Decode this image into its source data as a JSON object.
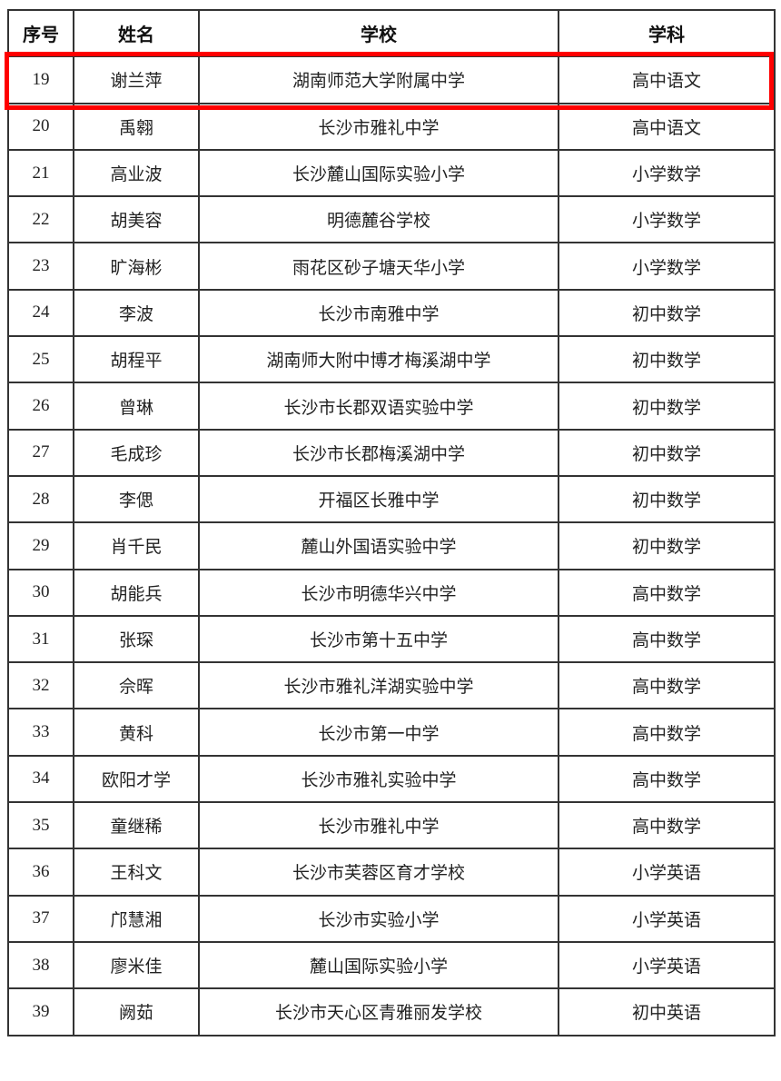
{
  "headers": [
    "序号",
    "姓名",
    "学校",
    "学科"
  ],
  "highlight_color": "#ff0000",
  "rows": [
    [
      "19",
      "谢兰萍",
      "湖南师范大学附属中学",
      "高中语文"
    ],
    [
      "20",
      "禹翱",
      "长沙市雅礼中学",
      "高中语文"
    ],
    [
      "21",
      "高业波",
      "长沙麓山国际实验小学",
      "小学数学"
    ],
    [
      "22",
      "胡美容",
      "明德麓谷学校",
      "小学数学"
    ],
    [
      "23",
      "旷海彬",
      "雨花区砂子塘天华小学",
      "小学数学"
    ],
    [
      "24",
      "李波",
      "长沙市南雅中学",
      "初中数学"
    ],
    [
      "25",
      "胡程平",
      "湖南师大附中博才梅溪湖中学",
      "初中数学"
    ],
    [
      "26",
      "曾琳",
      "长沙市长郡双语实验中学",
      "初中数学"
    ],
    [
      "27",
      "毛成珍",
      "长沙市长郡梅溪湖中学",
      "初中数学"
    ],
    [
      "28",
      "李偲",
      "开福区长雅中学",
      "初中数学"
    ],
    [
      "29",
      "肖千民",
      "麓山外国语实验中学",
      "初中数学"
    ],
    [
      "30",
      "胡能兵",
      "长沙市明德华兴中学",
      "高中数学"
    ],
    [
      "31",
      "张琛",
      "长沙市第十五中学",
      "高中数学"
    ],
    [
      "32",
      "佘晖",
      "长沙市雅礼洋湖实验中学",
      "高中数学"
    ],
    [
      "33",
      "黄科",
      "长沙市第一中学",
      "高中数学"
    ],
    [
      "34",
      "欧阳才学",
      "长沙市雅礼实验中学",
      "高中数学"
    ],
    [
      "35",
      "童继稀",
      "长沙市雅礼中学",
      "高中数学"
    ],
    [
      "36",
      "王科文",
      "长沙市芙蓉区育才学校",
      "小学英语"
    ],
    [
      "37",
      "邝慧湘",
      "长沙市实验小学",
      "小学英语"
    ],
    [
      "38",
      "廖米佳",
      "麓山国际实验小学",
      "小学英语"
    ],
    [
      "39",
      "阙茹",
      "长沙市天心区青雅丽发学校",
      "初中英语"
    ]
  ]
}
